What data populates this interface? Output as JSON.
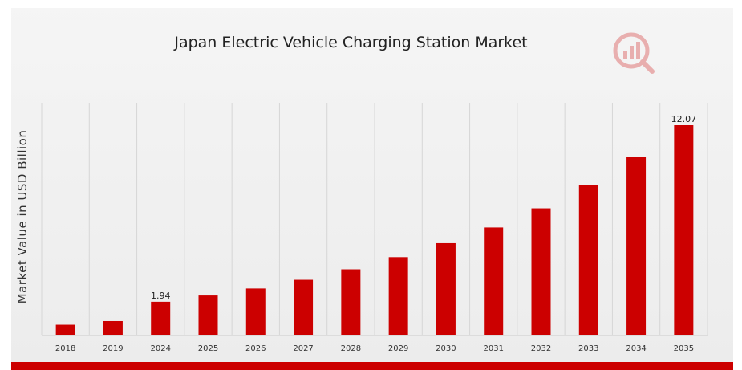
{
  "chart_data": {
    "type": "bar",
    "title": "Japan Electric Vehicle Charging Station Market",
    "ylabel": "Market Value in USD Billion",
    "xlabel": "",
    "categories": [
      "2018",
      "2019",
      "2024",
      "2025",
      "2026",
      "2027",
      "2028",
      "2029",
      "2030",
      "2031",
      "2032",
      "2033",
      "2034",
      "2035"
    ],
    "values": [
      0.62,
      0.83,
      1.94,
      2.3,
      2.7,
      3.2,
      3.8,
      4.5,
      5.3,
      6.2,
      7.3,
      8.65,
      10.25,
      12.07
    ],
    "data_labels": [
      {
        "category": "2024",
        "text": "1.94"
      },
      {
        "category": "2035",
        "text": "12.07"
      }
    ],
    "ylim": [
      0,
      12.5
    ],
    "grid": {
      "vertical": true,
      "horizontal": false
    },
    "legend": "none",
    "bar_color": "#cc0000",
    "accent_color": "#cc0000"
  },
  "logo": {
    "icon": "bar-chart-magnifier-icon"
  }
}
